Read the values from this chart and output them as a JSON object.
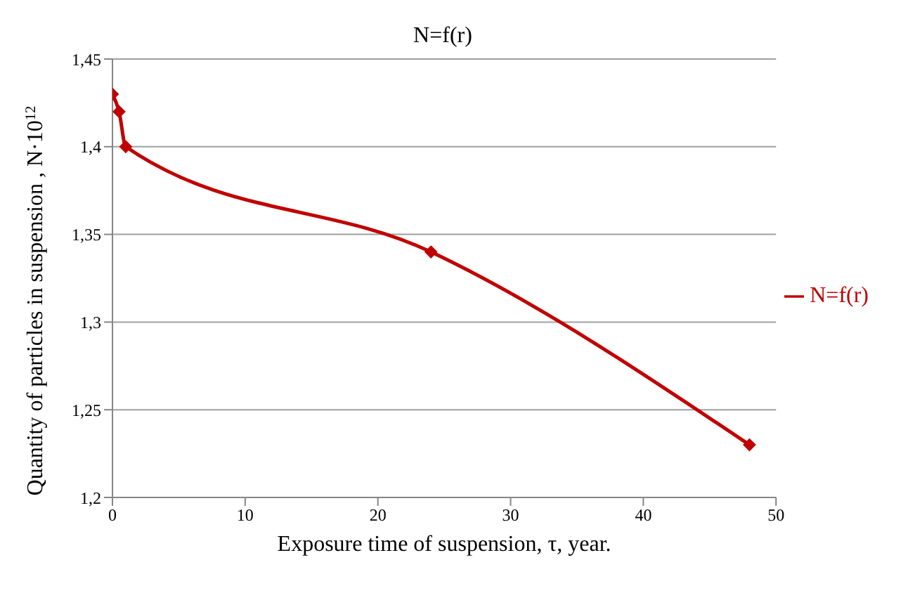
{
  "chart_data": {
    "type": "line",
    "title": "N=f(r)",
    "xlabel": "Exposure time of suspension, τ, year.",
    "ylabel": "Quantity of particles in suspension , N·10$^{12}$",
    "x": [
      0,
      0.5,
      1,
      24,
      48
    ],
    "series": [
      {
        "name": "N=f(r)",
        "color": "#c00000",
        "values": [
          1.43,
          1.42,
          1.4,
          1.34,
          1.23
        ]
      }
    ],
    "xlim": [
      0,
      50
    ],
    "xticks": [
      0,
      10,
      20,
      30,
      40,
      50
    ],
    "ylim": [
      1.2,
      1.45
    ],
    "yticks": [
      {
        "value": 1.2,
        "label": "1,2"
      },
      {
        "value": 1.25,
        "label": "1,25"
      },
      {
        "value": 1.3,
        "label": "1,3"
      },
      {
        "value": 1.35,
        "label": "1,35"
      },
      {
        "value": 1.4,
        "label": "1,4"
      },
      {
        "value": 1.45,
        "label": "1,45"
      }
    ],
    "grid": "y",
    "legend": "right",
    "marker": "diamond",
    "line_style": "solid"
  }
}
